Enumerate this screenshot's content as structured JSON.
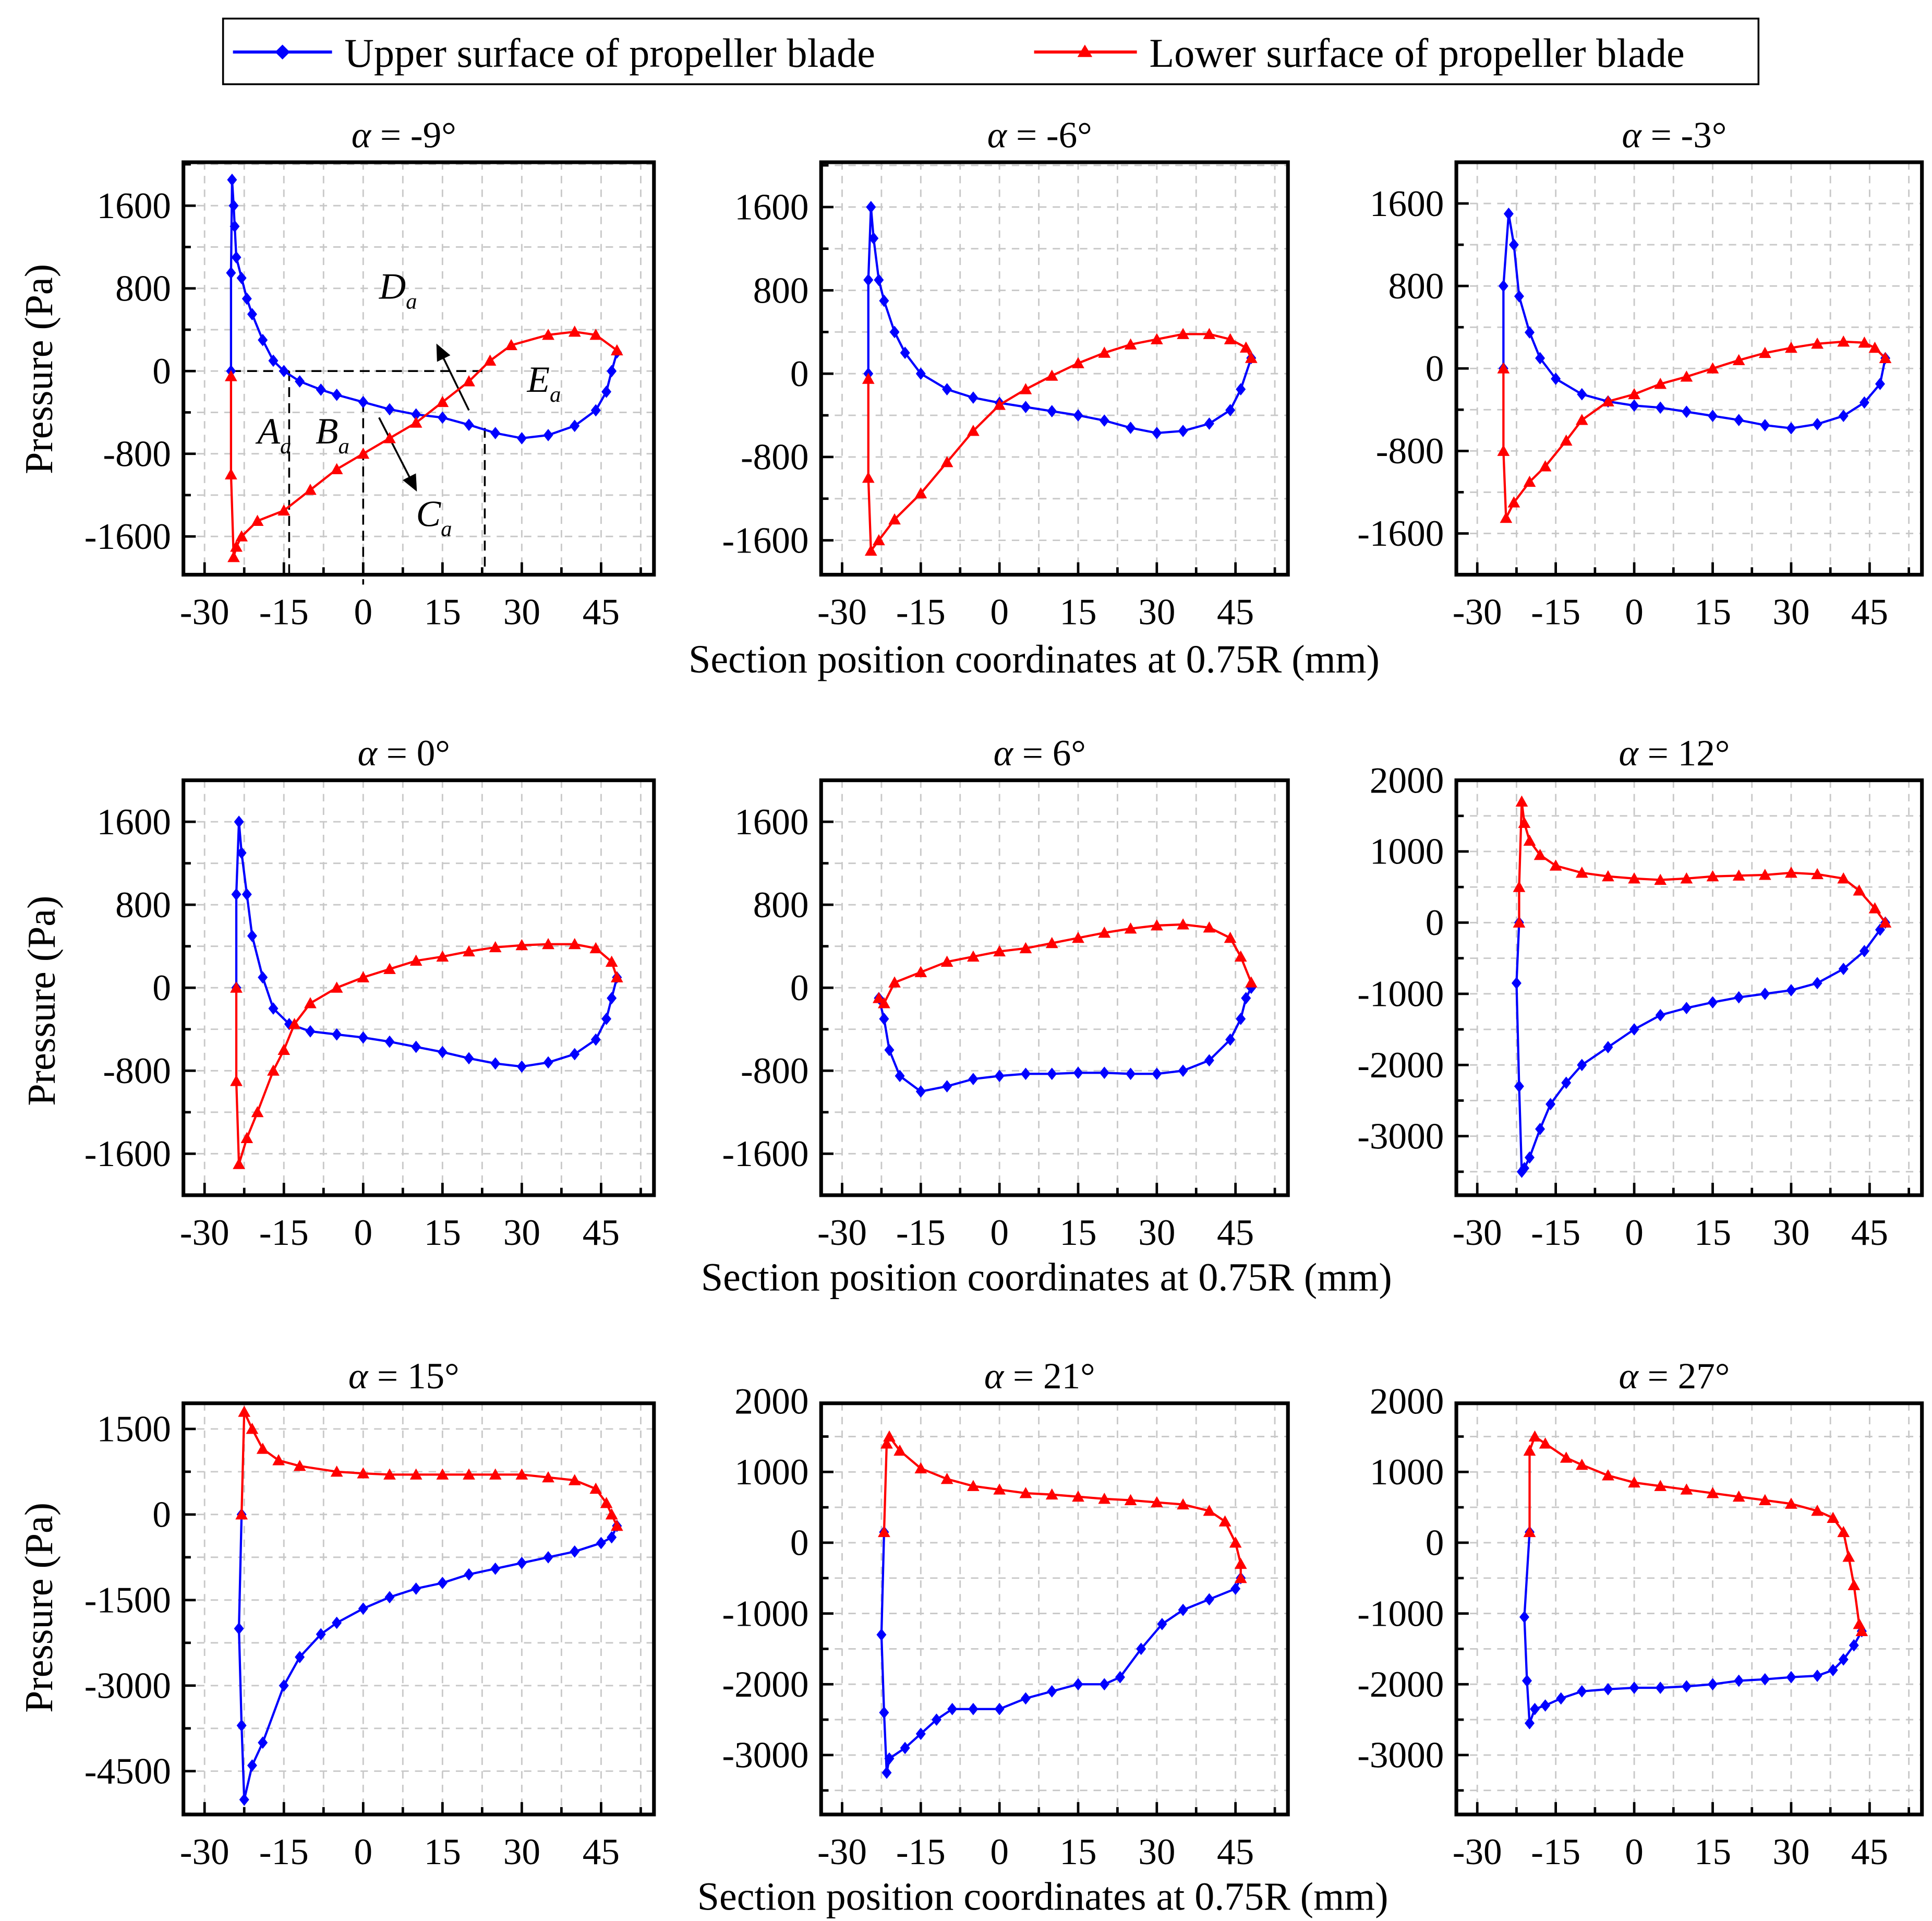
{
  "colors": {
    "upper": "#0000ff",
    "lower": "#ff0000"
  },
  "legend": {
    "upper": "Upper surface of propeller blade",
    "lower": "Lower surface of propeller blade",
    "placement": "top-center"
  },
  "shared": {
    "xlabel": "Section position coordinates at 0.75R (mm)",
    "ylabel": "Pressure (Pa)"
  },
  "chart_data": [
    {
      "type": "line",
      "title": "α = -9°",
      "xlim": [
        -34,
        55
      ],
      "ylim": [
        -1970,
        2020
      ],
      "xticks": [
        -30,
        -15,
        0,
        15,
        30,
        45
      ],
      "yticks": [
        -1600,
        -800,
        0,
        800,
        1600
      ],
      "annotations": [
        {
          "text": "A",
          "sub": "a",
          "x": -20,
          "y": -700
        },
        {
          "text": "B",
          "sub": "a",
          "x": -9,
          "y": -700
        },
        {
          "text": "C",
          "sub": "a",
          "x": 10,
          "y": -1500
        },
        {
          "text": "D",
          "sub": "a",
          "x": 3,
          "y": 700
        },
        {
          "text": "E",
          "sub": "a",
          "x": 31,
          "y": -200
        }
      ],
      "series": [
        {
          "name": "upper",
          "x": [
            -25,
            -25,
            -24.8,
            -24.5,
            -24.3,
            -24,
            -23,
            -22,
            -21,
            -19,
            -17,
            -15,
            -12,
            -8,
            -5,
            0,
            5,
            10,
            15,
            20,
            25,
            30,
            35,
            40,
            44,
            46,
            47,
            48
          ],
          "y": [
            0,
            950,
            1850,
            1600,
            1400,
            1100,
            900,
            700,
            550,
            300,
            100,
            0,
            -100,
            -180,
            -230,
            -300,
            -370,
            -420,
            -450,
            -520,
            -600,
            -650,
            -620,
            -530,
            -380,
            -200,
            0,
            180
          ]
        },
        {
          "name": "lower",
          "x": [
            -25,
            -25,
            -24.5,
            -24,
            -23,
            -20,
            -15,
            -10,
            -5,
            0,
            5,
            10,
            15,
            20,
            24,
            28,
            35,
            40,
            44,
            48
          ],
          "y": [
            -50,
            -1000,
            -1800,
            -1700,
            -1600,
            -1450,
            -1350,
            -1150,
            -950,
            -800,
            -650,
            -500,
            -300,
            -100,
            100,
            250,
            350,
            380,
            350,
            200
          ]
        }
      ]
    },
    {
      "type": "line",
      "title": "α = -6°",
      "xlim": [
        -34,
        55
      ],
      "ylim": [
        -1930,
        2030
      ],
      "xticks": [
        -30,
        -15,
        0,
        15,
        30,
        45
      ],
      "yticks": [
        -1600,
        -800,
        0,
        800,
        1600
      ],
      "series": [
        {
          "name": "upper",
          "x": [
            -25,
            -25,
            -24.5,
            -24,
            -23,
            -22,
            -20,
            -18,
            -15,
            -10,
            -5,
            0,
            5,
            10,
            15,
            20,
            25,
            30,
            35,
            40,
            44,
            46,
            48
          ],
          "y": [
            0,
            900,
            1600,
            1300,
            900,
            700,
            400,
            200,
            0,
            -150,
            -230,
            -280,
            -320,
            -360,
            -400,
            -450,
            -520,
            -570,
            -550,
            -480,
            -350,
            -150,
            150
          ]
        },
        {
          "name": "lower",
          "x": [
            -25,
            -25,
            -24.5,
            -23,
            -20,
            -15,
            -10,
            -5,
            0,
            5,
            10,
            15,
            20,
            25,
            30,
            35,
            40,
            44,
            47,
            48
          ],
          "y": [
            -50,
            -1000,
            -1700,
            -1600,
            -1400,
            -1150,
            -850,
            -550,
            -300,
            -150,
            -20,
            100,
            200,
            280,
            330,
            380,
            380,
            330,
            250,
            150
          ]
        }
      ]
    },
    {
      "type": "line",
      "title": "α = -3°",
      "xlim": [
        -34,
        55
      ],
      "ylim": [
        -2000,
        2000
      ],
      "xticks": [
        -30,
        -15,
        0,
        15,
        30,
        45
      ],
      "yticks": [
        -1600,
        -800,
        0,
        800,
        1600
      ],
      "series": [
        {
          "name": "upper",
          "x": [
            -25,
            -25,
            -24,
            -23,
            -22,
            -20,
            -18,
            -15,
            -10,
            -5,
            0,
            5,
            10,
            15,
            20,
            25,
            30,
            35,
            40,
            44,
            47,
            48
          ],
          "y": [
            0,
            800,
            1500,
            1200,
            700,
            350,
            100,
            -100,
            -250,
            -320,
            -360,
            -380,
            -420,
            -460,
            -500,
            -550,
            -580,
            -540,
            -460,
            -330,
            -150,
            100
          ]
        },
        {
          "name": "lower",
          "x": [
            -25,
            -25,
            -24.5,
            -23,
            -20,
            -17,
            -13,
            -10,
            -5,
            0,
            5,
            10,
            15,
            20,
            25,
            30,
            35,
            40,
            44,
            46,
            48
          ],
          "y": [
            0,
            -800,
            -1450,
            -1300,
            -1100,
            -950,
            -700,
            -500,
            -320,
            -250,
            -150,
            -80,
            0,
            80,
            150,
            200,
            240,
            260,
            250,
            200,
            100
          ]
        }
      ]
    },
    {
      "type": "line",
      "title": "α = 0°",
      "xlim": [
        -34,
        55
      ],
      "ylim": [
        -2000,
        2000
      ],
      "xticks": [
        -30,
        -15,
        0,
        15,
        30,
        45
      ],
      "yticks": [
        -1600,
        -800,
        0,
        800,
        1600
      ],
      "series": [
        {
          "name": "upper",
          "x": [
            -24,
            -24,
            -23.5,
            -23,
            -22,
            -21,
            -19,
            -17,
            -14,
            -10,
            -5,
            0,
            5,
            10,
            15,
            20,
            25,
            30,
            35,
            40,
            44,
            46,
            47,
            48
          ],
          "y": [
            0,
            900,
            1600,
            1300,
            900,
            500,
            100,
            -200,
            -350,
            -420,
            -450,
            -480,
            -520,
            -570,
            -620,
            -680,
            -730,
            -760,
            -720,
            -640,
            -500,
            -300,
            -100,
            100
          ]
        },
        {
          "name": "lower",
          "x": [
            -24,
            -24,
            -23.5,
            -22,
            -20,
            -17,
            -15,
            -13,
            -10,
            -5,
            0,
            5,
            10,
            15,
            20,
            25,
            30,
            35,
            40,
            44,
            47,
            48
          ],
          "y": [
            0,
            -900,
            -1700,
            -1450,
            -1200,
            -800,
            -600,
            -350,
            -150,
            0,
            100,
            180,
            260,
            300,
            350,
            390,
            410,
            420,
            420,
            380,
            250,
            100
          ]
        }
      ]
    },
    {
      "type": "line",
      "title": "α = 6°",
      "xlim": [
        -34,
        55
      ],
      "ylim": [
        -2000,
        2000
      ],
      "xticks": [
        -30,
        -15,
        0,
        15,
        30,
        45
      ],
      "yticks": [
        -1600,
        -800,
        0,
        800,
        1600
      ],
      "series": [
        {
          "name": "upper",
          "x": [
            -23,
            -22,
            -21,
            -19,
            -15,
            -10,
            -5,
            0,
            5,
            10,
            15,
            20,
            25,
            30,
            35,
            40,
            44,
            46,
            47,
            48
          ],
          "y": [
            -100,
            -300,
            -600,
            -850,
            -1000,
            -950,
            -880,
            -850,
            -830,
            -830,
            -820,
            -820,
            -830,
            -830,
            -800,
            -700,
            -500,
            -300,
            -100,
            0
          ]
        },
        {
          "name": "lower",
          "x": [
            -23,
            -22,
            -20,
            -15,
            -10,
            -5,
            0,
            5,
            10,
            15,
            20,
            25,
            30,
            35,
            40,
            44,
            46,
            48
          ],
          "y": [
            -100,
            -150,
            50,
            150,
            250,
            300,
            350,
            380,
            430,
            480,
            530,
            570,
            600,
            610,
            580,
            480,
            300,
            50
          ]
        }
      ]
    },
    {
      "type": "line",
      "title": "α = 12°",
      "xlim": [
        -34,
        55
      ],
      "ylim": [
        -3830,
        2000
      ],
      "xticks": [
        -30,
        -15,
        0,
        15,
        30,
        45
      ],
      "yticks": [
        -3000,
        -2000,
        -1000,
        0,
        1000,
        2000
      ],
      "series": [
        {
          "name": "upper",
          "x": [
            -22,
            -22.5,
            -22,
            -21.5,
            -21,
            -20,
            -18,
            -16,
            -13,
            -10,
            -5,
            0,
            5,
            10,
            15,
            20,
            25,
            30,
            35,
            40,
            44,
            47,
            48
          ],
          "y": [
            0,
            -850,
            -2300,
            -3500,
            -3450,
            -3300,
            -2900,
            -2550,
            -2250,
            -2000,
            -1750,
            -1500,
            -1300,
            -1200,
            -1120,
            -1050,
            -1000,
            -950,
            -850,
            -650,
            -400,
            -100,
            0
          ]
        },
        {
          "name": "lower",
          "x": [
            -22,
            -22,
            -21.5,
            -21,
            -20,
            -18,
            -15,
            -10,
            -5,
            0,
            5,
            10,
            15,
            20,
            25,
            30,
            35,
            40,
            43,
            46,
            48
          ],
          "y": [
            0,
            500,
            1700,
            1400,
            1150,
            950,
            800,
            700,
            650,
            620,
            600,
            620,
            650,
            660,
            670,
            700,
            680,
            620,
            450,
            200,
            0
          ]
        }
      ]
    },
    {
      "type": "line",
      "title": "α = 15°",
      "xlim": [
        -34,
        55
      ],
      "ylim": [
        -5260,
        1950
      ],
      "xticks": [
        -30,
        -15,
        0,
        15,
        30,
        45
      ],
      "yticks": [
        -4500,
        -3000,
        -1500,
        0,
        1500
      ],
      "series": [
        {
          "name": "upper",
          "x": [
            -23,
            -23.5,
            -23,
            -22.5,
            -21,
            -19,
            -15,
            -12,
            -8,
            -5,
            0,
            5,
            10,
            15,
            20,
            25,
            30,
            35,
            40,
            45,
            47,
            48
          ],
          "y": [
            0,
            -2000,
            -3700,
            -5000,
            -4400,
            -4000,
            -3000,
            -2500,
            -2100,
            -1900,
            -1650,
            -1450,
            -1300,
            -1200,
            -1050,
            -950,
            -850,
            -750,
            -650,
            -500,
            -400,
            -200
          ]
        },
        {
          "name": "lower",
          "x": [
            -23,
            -22.5,
            -21,
            -19,
            -16,
            -12,
            -5,
            0,
            5,
            10,
            15,
            20,
            25,
            30,
            35,
            40,
            44,
            46,
            47,
            48
          ],
          "y": [
            0,
            1800,
            1500,
            1150,
            950,
            850,
            750,
            720,
            700,
            700,
            700,
            700,
            700,
            700,
            650,
            600,
            450,
            200,
            0,
            -200
          ]
        }
      ]
    },
    {
      "type": "line",
      "title": "α = 21°",
      "xlim": [
        -34,
        55
      ],
      "ylim": [
        -3840,
        1970
      ],
      "xticks": [
        -30,
        -15,
        0,
        15,
        30,
        45
      ],
      "yticks": [
        -3000,
        -2000,
        -1000,
        0,
        1000,
        2000
      ],
      "series": [
        {
          "name": "upper",
          "x": [
            -22,
            -22.5,
            -22,
            -21.5,
            -21,
            -18,
            -15,
            -12,
            -9,
            -5,
            0,
            5,
            10,
            15,
            20,
            23,
            27,
            31,
            35,
            40,
            45,
            46
          ],
          "y": [
            150,
            -1300,
            -2400,
            -3250,
            -3050,
            -2900,
            -2700,
            -2500,
            -2350,
            -2350,
            -2350,
            -2200,
            -2100,
            -2000,
            -2000,
            -1900,
            -1500,
            -1150,
            -950,
            -800,
            -650,
            -500
          ]
        },
        {
          "name": "lower",
          "x": [
            -22,
            -21.5,
            -21,
            -19,
            -15,
            -10,
            -5,
            0,
            5,
            10,
            15,
            20,
            25,
            30,
            35,
            40,
            43,
            45,
            46,
            46
          ],
          "y": [
            150,
            1400,
            1500,
            1300,
            1050,
            900,
            800,
            750,
            700,
            680,
            650,
            620,
            600,
            570,
            540,
            450,
            300,
            0,
            -300,
            -500
          ]
        }
      ]
    },
    {
      "type": "line",
      "title": "α = 27°",
      "xlim": [
        -34,
        55
      ],
      "ylim": [
        -3840,
        1970
      ],
      "xticks": [
        -30,
        -15,
        0,
        15,
        30,
        45
      ],
      "yticks": [
        -3000,
        -2000,
        -1000,
        0,
        1000,
        2000
      ],
      "series": [
        {
          "name": "upper",
          "x": [
            -20,
            -21,
            -20.5,
            -20,
            -19,
            -17,
            -14,
            -10,
            -5,
            0,
            5,
            10,
            15,
            20,
            25,
            30,
            35,
            38,
            40,
            42,
            43.5
          ],
          "y": [
            150,
            -1050,
            -1950,
            -2550,
            -2350,
            -2300,
            -2200,
            -2100,
            -2070,
            -2050,
            -2050,
            -2030,
            -2000,
            -1950,
            -1930,
            -1900,
            -1880,
            -1800,
            -1650,
            -1450,
            -1250
          ]
        },
        {
          "name": "lower",
          "x": [
            -20,
            -20,
            -19,
            -17,
            -13,
            -10,
            -5,
            0,
            5,
            10,
            15,
            20,
            25,
            30,
            35,
            38,
            40,
            41,
            42,
            43,
            43.5
          ],
          "y": [
            150,
            1300,
            1500,
            1400,
            1200,
            1100,
            950,
            850,
            800,
            750,
            700,
            650,
            600,
            550,
            450,
            350,
            150,
            -200,
            -600,
            -1150,
            -1250
          ]
        }
      ]
    }
  ]
}
